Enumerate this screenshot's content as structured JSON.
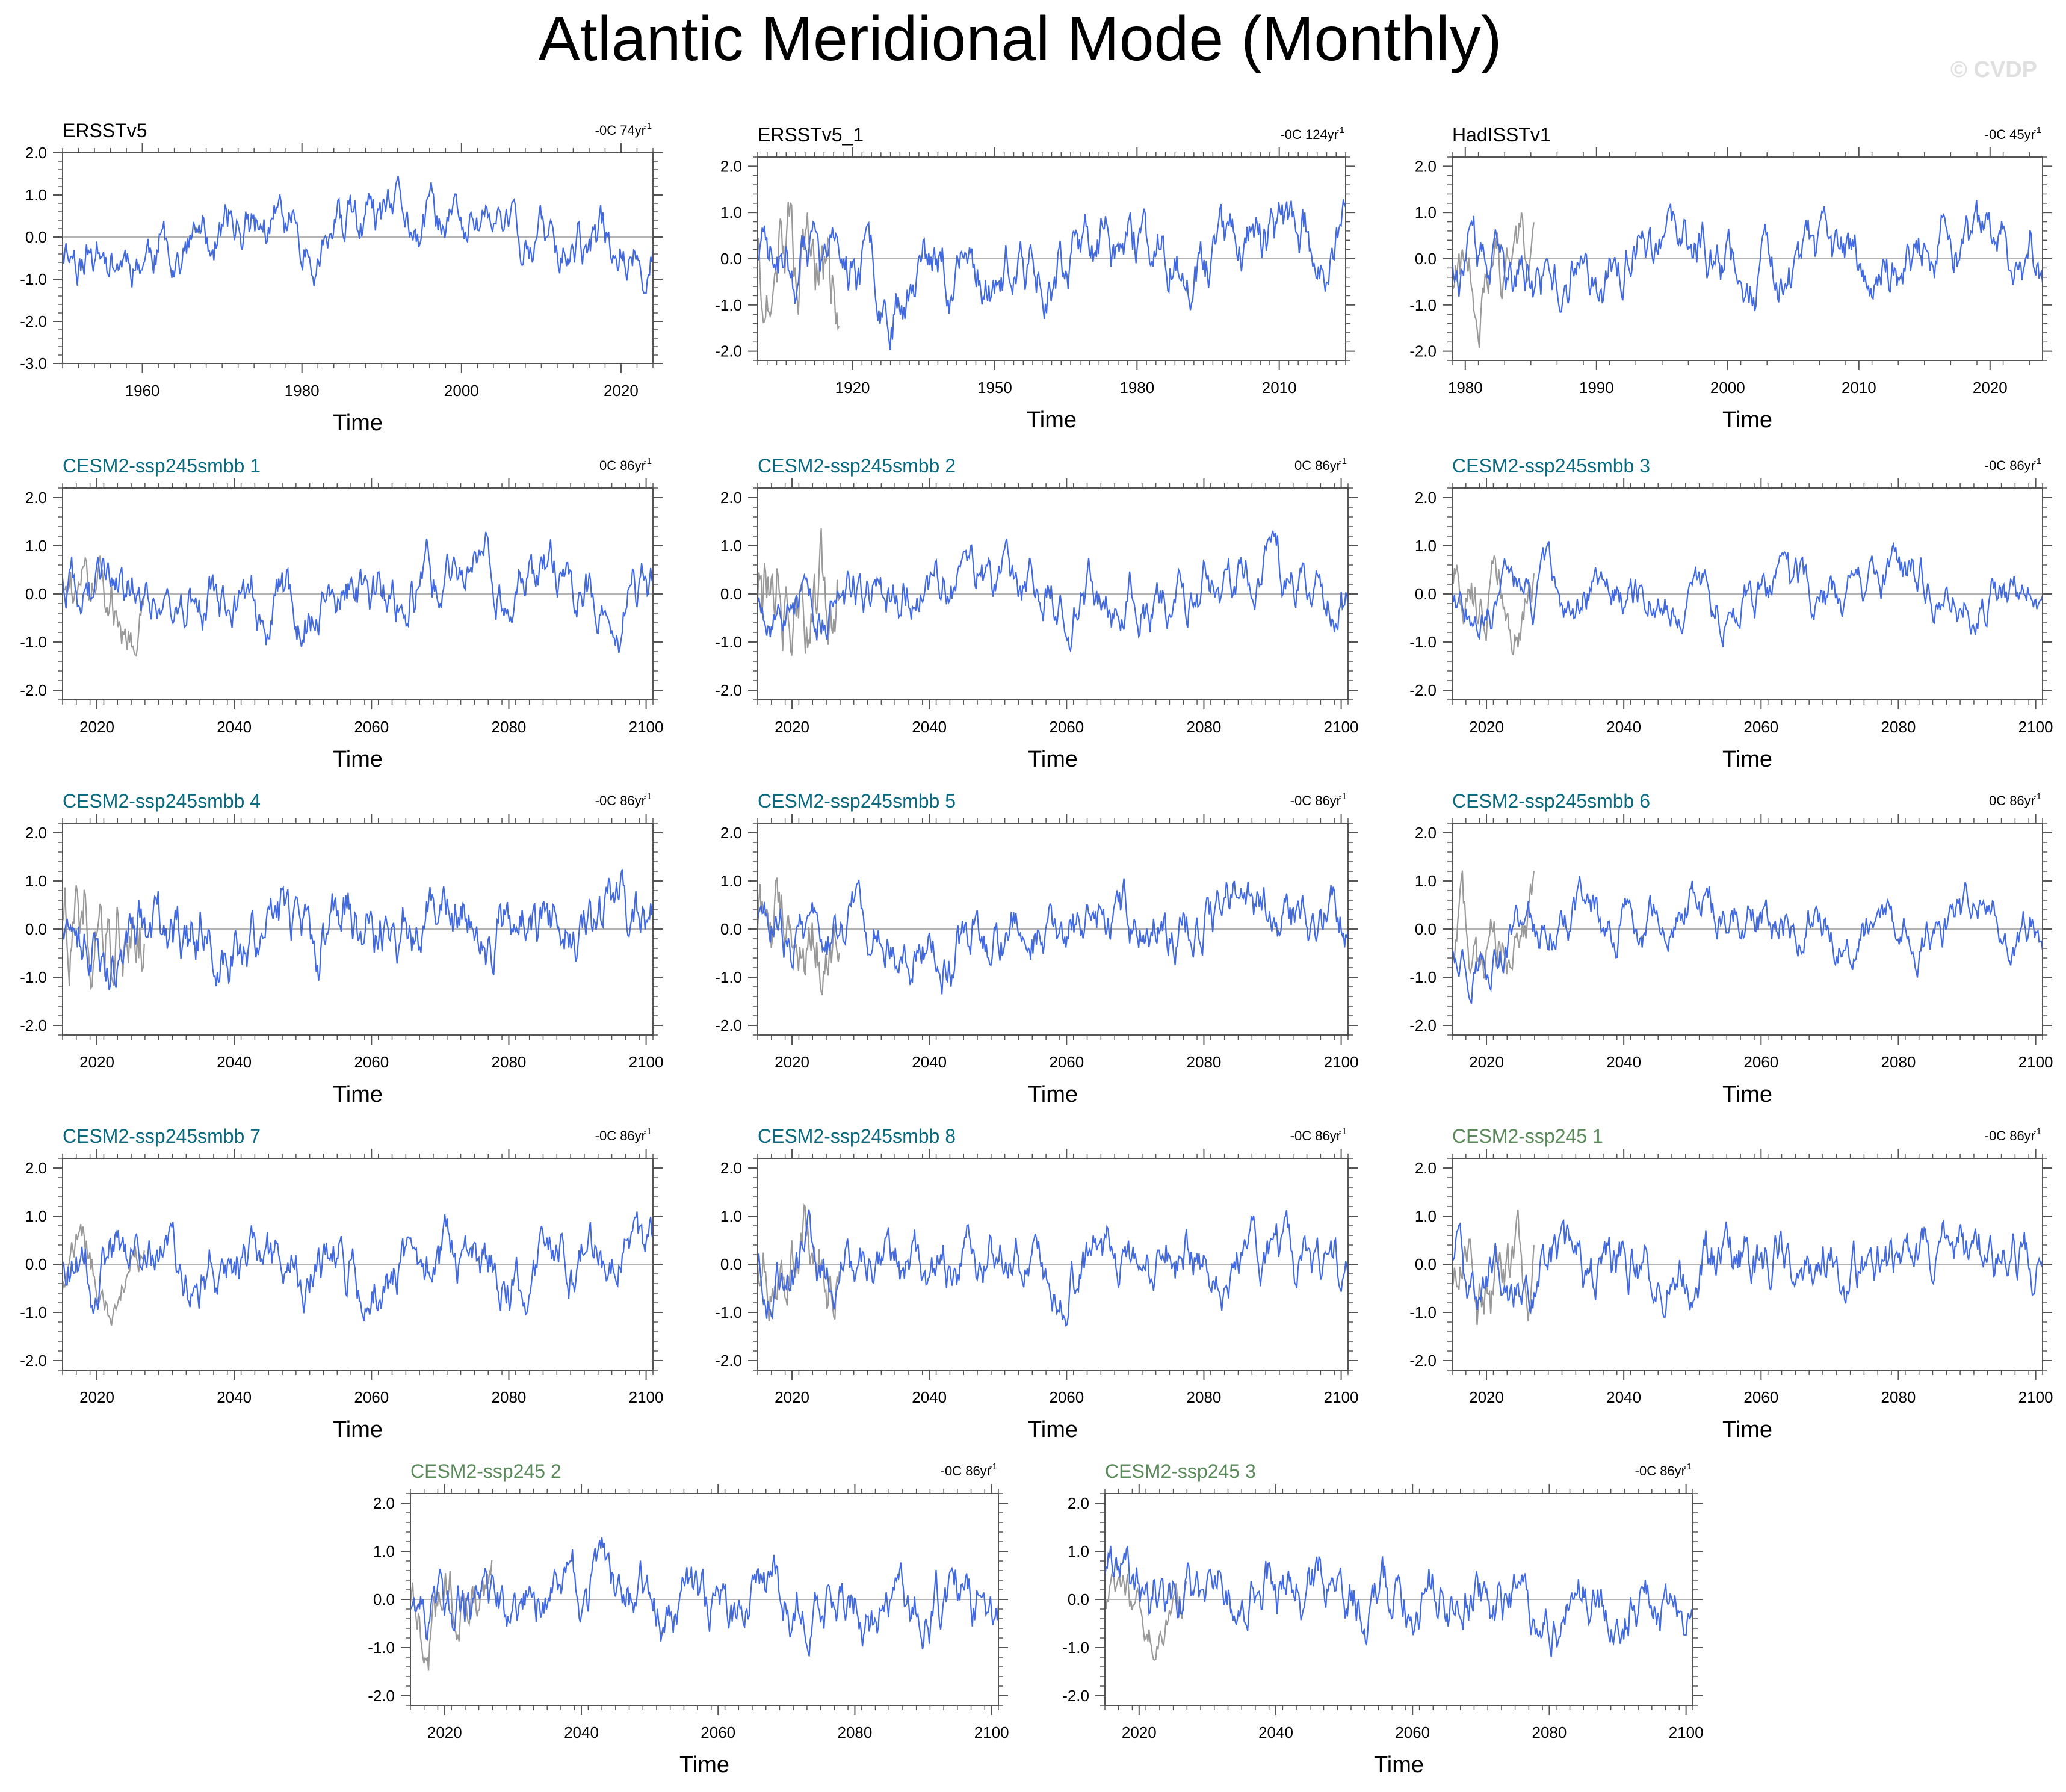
{
  "figure": {
    "title": "Atlantic Meridional Mode (Monthly)",
    "watermark": "© CVDP"
  },
  "colors": {
    "model_line": "#4169e1",
    "obs_line": "#999999",
    "obs_label": "#000000",
    "smbb_label": "#0a6a80",
    "ssp245_label": "#5a8a5a",
    "zero_line": "#b4b4b4",
    "frame": "#555555"
  },
  "chart_data": [
    {
      "type": "line",
      "title": "ERSSTv5",
      "trend": "-0C 74yr",
      "trend_sup": "-1",
      "xlabel": "Time",
      "xlim": [
        1950,
        2024
      ],
      "ylim": [
        -3,
        2
      ],
      "yticks": [
        2,
        1,
        0,
        -1,
        -2,
        -3
      ],
      "ytick_labels": [
        "2.0",
        "1.0",
        "0.0",
        "-1.0",
        "-2.0",
        "-3.0"
      ],
      "xticks": [
        1960,
        1980,
        2000,
        2020
      ],
      "xtick_labels": [
        "1960",
        "1980",
        "2000",
        "2020"
      ],
      "label_group": "obs",
      "seed": 11,
      "amp": 0.55,
      "has_gray": false
    },
    {
      "type": "line",
      "title": "ERSSTv5_1",
      "trend": "-0C 124yr",
      "trend_sup": "-1",
      "xlabel": "Time",
      "xlim": [
        1900,
        2024
      ],
      "ylim": [
        -2.2,
        2.2
      ],
      "yticks": [
        2,
        1,
        0,
        -1,
        -2
      ],
      "ytick_labels": [
        "2.0",
        "1.0",
        "0.0",
        "-1.0",
        "-2.0"
      ],
      "xticks": [
        1920,
        1950,
        1980,
        2010
      ],
      "xtick_labels": [
        "1920",
        "1950",
        "1980",
        "2010"
      ],
      "label_group": "obs",
      "seed": 23,
      "amp": 0.6,
      "has_gray": true
    },
    {
      "type": "line",
      "title": "HadISSTv1",
      "trend": "-0C 45yr",
      "trend_sup": "-1",
      "xlabel": "Time",
      "xlim": [
        1979,
        2024
      ],
      "ylim": [
        -2.2,
        2.2
      ],
      "yticks": [
        2,
        1,
        0,
        -1,
        -2
      ],
      "ytick_labels": [
        "2.0",
        "1.0",
        "0.0",
        "-1.0",
        "-2.0"
      ],
      "xticks": [
        1980,
        1990,
        2000,
        2010,
        2020
      ],
      "xtick_labels": [
        "1980",
        "1990",
        "2000",
        "2010",
        "2020"
      ],
      "label_group": "obs",
      "seed": 37,
      "amp": 0.5,
      "has_gray": true
    },
    {
      "type": "line",
      "title": "CESM2-ssp245smbb 1",
      "trend": "0C 86yr",
      "trend_sup": "-1",
      "xlabel": "Time",
      "xlim": [
        2015,
        2101
      ],
      "ylim": [
        -2.2,
        2.2
      ],
      "yticks": [
        2,
        1,
        0,
        -1,
        -2
      ],
      "ytick_labels": [
        "2.0",
        "1.0",
        "0.0",
        "-1.0",
        "-2.0"
      ],
      "xticks": [
        2020,
        2040,
        2060,
        2080,
        2100
      ],
      "xtick_labels": [
        "2020",
        "2040",
        "2060",
        "2080",
        "2100"
      ],
      "label_group": "smbb",
      "seed": 41,
      "amp": 0.45,
      "has_gray": true
    },
    {
      "type": "line",
      "title": "CESM2-ssp245smbb 2",
      "trend": "0C 86yr",
      "trend_sup": "-1",
      "xlabel": "Time",
      "xlim": [
        2015,
        2101
      ],
      "ylim": [
        -2.2,
        2.2
      ],
      "yticks": [
        2,
        1,
        0,
        -1,
        -2
      ],
      "ytick_labels": [
        "2.0",
        "1.0",
        "0.0",
        "-1.0",
        "-2.0"
      ],
      "xticks": [
        2020,
        2040,
        2060,
        2080,
        2100
      ],
      "xtick_labels": [
        "2020",
        "2040",
        "2060",
        "2080",
        "2100"
      ],
      "label_group": "smbb",
      "seed": 53,
      "amp": 0.45,
      "has_gray": true
    },
    {
      "type": "line",
      "title": "CESM2-ssp245smbb 3",
      "trend": "-0C 86yr",
      "trend_sup": "-1",
      "xlabel": "Time",
      "xlim": [
        2015,
        2101
      ],
      "ylim": [
        -2.2,
        2.2
      ],
      "yticks": [
        2,
        1,
        0,
        -1,
        -2
      ],
      "ytick_labels": [
        "2.0",
        "1.0",
        "0.0",
        "-1.0",
        "-2.0"
      ],
      "xticks": [
        2020,
        2040,
        2060,
        2080,
        2100
      ],
      "xtick_labels": [
        "2020",
        "2040",
        "2060",
        "2080",
        "2100"
      ],
      "label_group": "smbb",
      "seed": 67,
      "amp": 0.42,
      "has_gray": true
    },
    {
      "type": "line",
      "title": "CESM2-ssp245smbb 4",
      "trend": "-0C 86yr",
      "trend_sup": "-1",
      "xlabel": "Time",
      "xlim": [
        2015,
        2101
      ],
      "ylim": [
        -2.2,
        2.2
      ],
      "yticks": [
        2,
        1,
        0,
        -1,
        -2
      ],
      "ytick_labels": [
        "2.0",
        "1.0",
        "0.0",
        "-1.0",
        "-2.0"
      ],
      "xticks": [
        2020,
        2040,
        2060,
        2080,
        2100
      ],
      "xtick_labels": [
        "2020",
        "2040",
        "2060",
        "2080",
        "2100"
      ],
      "label_group": "smbb",
      "seed": 71,
      "amp": 0.45,
      "has_gray": true
    },
    {
      "type": "line",
      "title": "CESM2-ssp245smbb 5",
      "trend": "-0C 86yr",
      "trend_sup": "-1",
      "xlabel": "Time",
      "xlim": [
        2015,
        2101
      ],
      "ylim": [
        -2.2,
        2.2
      ],
      "yticks": [
        2,
        1,
        0,
        -1,
        -2
      ],
      "ytick_labels": [
        "2.0",
        "1.0",
        "0.0",
        "-1.0",
        "-2.0"
      ],
      "xticks": [
        2020,
        2040,
        2060,
        2080,
        2100
      ],
      "xtick_labels": [
        "2020",
        "2040",
        "2060",
        "2080",
        "2100"
      ],
      "label_group": "smbb",
      "seed": 83,
      "amp": 0.45,
      "has_gray": true
    },
    {
      "type": "line",
      "title": "CESM2-ssp245smbb 6",
      "trend": "0C 86yr",
      "trend_sup": "-1",
      "xlabel": "Time",
      "xlim": [
        2015,
        2101
      ],
      "ylim": [
        -2.2,
        2.2
      ],
      "yticks": [
        2,
        1,
        0,
        -1,
        -2
      ],
      "ytick_labels": [
        "2.0",
        "1.0",
        "0.0",
        "-1.0",
        "-2.0"
      ],
      "xticks": [
        2020,
        2040,
        2060,
        2080,
        2100
      ],
      "xtick_labels": [
        "2020",
        "2040",
        "2060",
        "2080",
        "2100"
      ],
      "label_group": "smbb",
      "seed": 97,
      "amp": 0.45,
      "has_gray": true
    },
    {
      "type": "line",
      "title": "CESM2-ssp245smbb 7",
      "trend": "-0C 86yr",
      "trend_sup": "-1",
      "xlabel": "Time",
      "xlim": [
        2015,
        2101
      ],
      "ylim": [
        -2.2,
        2.2
      ],
      "yticks": [
        2,
        1,
        0,
        -1,
        -2
      ],
      "ytick_labels": [
        "2.0",
        "1.0",
        "0.0",
        "-1.0",
        "-2.0"
      ],
      "xticks": [
        2020,
        2040,
        2060,
        2080,
        2100
      ],
      "xtick_labels": [
        "2020",
        "2040",
        "2060",
        "2080",
        "2100"
      ],
      "label_group": "smbb",
      "seed": 101,
      "amp": 0.45,
      "has_gray": true
    },
    {
      "type": "line",
      "title": "CESM2-ssp245smbb 8",
      "trend": "-0C 86yr",
      "trend_sup": "-1",
      "xlabel": "Time",
      "xlim": [
        2015,
        2101
      ],
      "ylim": [
        -2.2,
        2.2
      ],
      "yticks": [
        2,
        1,
        0,
        -1,
        -2
      ],
      "ytick_labels": [
        "2.0",
        "1.0",
        "0.0",
        "-1.0",
        "-2.0"
      ],
      "xticks": [
        2020,
        2040,
        2060,
        2080,
        2100
      ],
      "xtick_labels": [
        "2020",
        "2040",
        "2060",
        "2080",
        "2100"
      ],
      "label_group": "smbb",
      "seed": 113,
      "amp": 0.42,
      "has_gray": true
    },
    {
      "type": "line",
      "title": "CESM2-ssp245 1",
      "trend": "-0C 86yr",
      "trend_sup": "-1",
      "xlabel": "Time",
      "xlim": [
        2015,
        2101
      ],
      "ylim": [
        -2.2,
        2.2
      ],
      "yticks": [
        2,
        1,
        0,
        -1,
        -2
      ],
      "ytick_labels": [
        "2.0",
        "1.0",
        "0.0",
        "-1.0",
        "-2.0"
      ],
      "xticks": [
        2020,
        2040,
        2060,
        2080,
        2100
      ],
      "xtick_labels": [
        "2020",
        "2040",
        "2060",
        "2080",
        "2100"
      ],
      "label_group": "ssp245",
      "seed": 127,
      "amp": 0.42,
      "has_gray": true
    },
    {
      "type": "line",
      "title": "CESM2-ssp245 2",
      "trend": "-0C 86yr",
      "trend_sup": "-1",
      "xlabel": "Time",
      "xlim": [
        2015,
        2101
      ],
      "ylim": [
        -2.2,
        2.2
      ],
      "yticks": [
        2,
        1,
        0,
        -1,
        -2
      ],
      "ytick_labels": [
        "2.0",
        "1.0",
        "0.0",
        "-1.0",
        "-2.0"
      ],
      "xticks": [
        2020,
        2040,
        2060,
        2080,
        2100
      ],
      "xtick_labels": [
        "2020",
        "2040",
        "2060",
        "2080",
        "2100"
      ],
      "label_group": "ssp245",
      "seed": 131,
      "amp": 0.42,
      "has_gray": true
    },
    {
      "type": "line",
      "title": "CESM2-ssp245 3",
      "trend": "-0C 86yr",
      "trend_sup": "-1",
      "xlabel": "Time",
      "xlim": [
        2015,
        2101
      ],
      "ylim": [
        -2.2,
        2.2
      ],
      "yticks": [
        2,
        1,
        0,
        -1,
        -2
      ],
      "ytick_labels": [
        "2.0",
        "1.0",
        "0.0",
        "-1.0",
        "-2.0"
      ],
      "xticks": [
        2020,
        2040,
        2060,
        2080,
        2100
      ],
      "xtick_labels": [
        "2020",
        "2040",
        "2060",
        "2080",
        "2100"
      ],
      "label_group": "ssp245",
      "seed": 139,
      "amp": 0.42,
      "has_gray": true
    }
  ]
}
